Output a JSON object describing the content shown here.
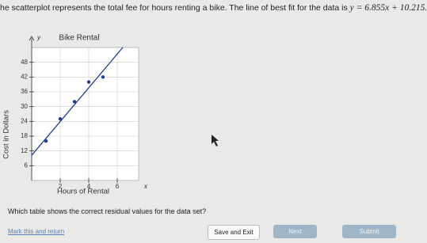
{
  "header": {
    "text": "he scatterplot represents the total fee for hours renting a bike. The line of best fit for the data is ",
    "equation": "y = 6.855x + 10.215."
  },
  "chart_data": {
    "type": "scatter",
    "title": "Bike Rental",
    "x_label": "Hours of Rental",
    "y_label": "Cost in Dollars",
    "x_axis_name": "x",
    "y_axis_name": "y",
    "x": [
      1,
      2,
      3,
      4,
      5
    ],
    "values": [
      16,
      25,
      32,
      40,
      42
    ],
    "color": "#1f3f8f",
    "fit": {
      "slope": 6.855,
      "intercept": 10.215,
      "color": "#1f3f8f"
    },
    "xlim": [
      0,
      7.5
    ],
    "ylim": [
      0,
      54
    ],
    "xticks": [
      2,
      4,
      6
    ],
    "yticks": [
      6,
      12,
      18,
      24,
      30,
      36,
      42,
      48
    ],
    "grid": true
  },
  "question": "Which table shows the correct residual values for the data set?",
  "buttons": {
    "mark": "Mark this and return",
    "save": "Save and Exit",
    "next": "Next",
    "submit": "Submit"
  }
}
